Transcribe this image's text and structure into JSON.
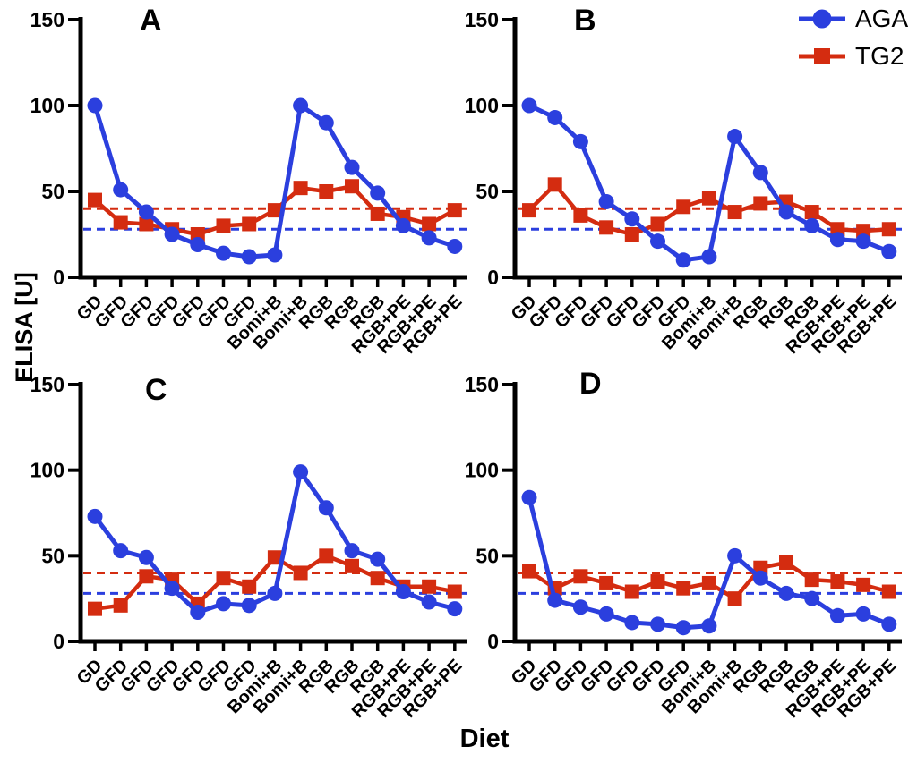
{
  "chart_data": {
    "type": "line",
    "title": "",
    "ylabel": "ELISA [U]",
    "xlabel": "Diet",
    "ylim": [
      0,
      150
    ],
    "yticks": [
      0,
      50,
      100,
      150
    ],
    "grid": false,
    "legend_position": "top-right",
    "categories": [
      "GD",
      "GFD",
      "GFD",
      "GFD",
      "GFD",
      "GFD",
      "GFD",
      "Bomi+B",
      "Bomi+B",
      "RGB",
      "RGB",
      "RGB",
      "RGB+PE",
      "RGB+PE",
      "RGB+PE"
    ],
    "legend": [
      {
        "name": "AGA",
        "color": "#2B3FDE",
        "marker": "circle"
      },
      {
        "name": "TG2",
        "color": "#D42C10",
        "marker": "square"
      }
    ],
    "reference_lines": [
      {
        "name": "tg2-cutoff",
        "value": 40,
        "color": "#D42C10",
        "style": "dashed"
      },
      {
        "name": "aga-cutoff",
        "value": 28,
        "color": "#2B3FDE",
        "style": "dashed"
      }
    ],
    "panels": [
      {
        "label": "A",
        "series": [
          {
            "name": "AGA",
            "values": [
              100,
              51,
              38,
              25,
              19,
              14,
              12,
              13,
              100,
              90,
              64,
              49,
              30,
              23,
              18
            ]
          },
          {
            "name": "TG2",
            "values": [
              45,
              32,
              31,
              28,
              25,
              30,
              31,
              39,
              52,
              50,
              53,
              37,
              35,
              31,
              39
            ]
          }
        ]
      },
      {
        "label": "B",
        "series": [
          {
            "name": "AGA",
            "values": [
              100,
              93,
              79,
              44,
              34,
              21,
              10,
              12,
              82,
              61,
              38,
              30,
              22,
              21,
              15
            ]
          },
          {
            "name": "TG2",
            "values": [
              39,
              54,
              36,
              29,
              25,
              31,
              41,
              46,
              38,
              43,
              44,
              38,
              28,
              27,
              28
            ]
          }
        ]
      },
      {
        "label": "C",
        "series": [
          {
            "name": "AGA",
            "values": [
              73,
              53,
              49,
              31,
              17,
              22,
              21,
              28,
              99,
              78,
              53,
              48,
              29,
              23,
              19
            ]
          },
          {
            "name": "TG2",
            "values": [
              19,
              21,
              38,
              36,
              22,
              37,
              32,
              49,
              40,
              50,
              44,
              37,
              32,
              32,
              29
            ]
          }
        ]
      },
      {
        "label": "D",
        "series": [
          {
            "name": "AGA",
            "values": [
              84,
              24,
              20,
              16,
              11,
              10,
              8,
              9,
              50,
              37,
              28,
              25,
              15,
              16,
              10
            ]
          },
          {
            "name": "TG2",
            "values": [
              41,
              31,
              38,
              34,
              29,
              35,
              31,
              34,
              25,
              43,
              46,
              36,
              35,
              33,
              29
            ]
          }
        ]
      }
    ]
  }
}
